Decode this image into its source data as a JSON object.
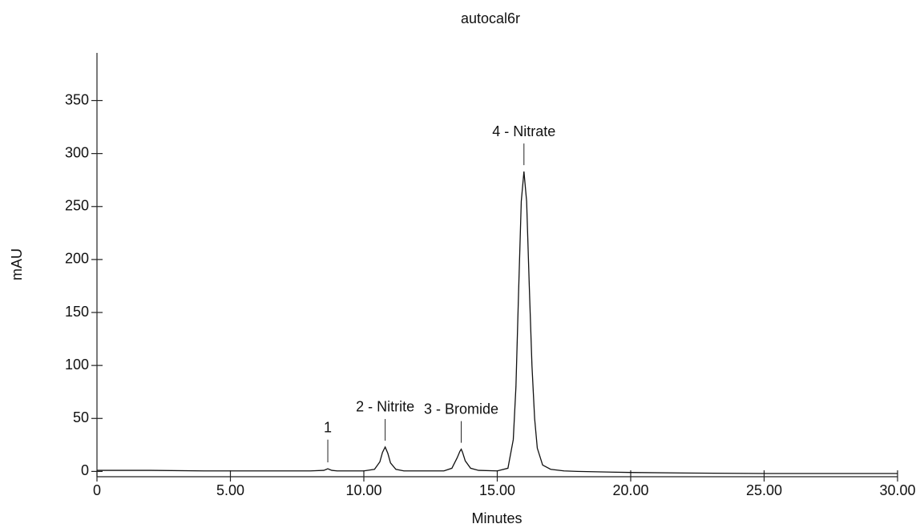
{
  "chart_data": {
    "type": "line",
    "title": "autocal6r",
    "x_label": "Minutes",
    "y_label": "mAU",
    "xlim": [
      0,
      30
    ],
    "ylim": [
      -5,
      395
    ],
    "xticks": [
      0,
      {
        "value": 5,
        "label": "5.00"
      },
      {
        "value": 10,
        "label": "10.00"
      },
      {
        "value": 15,
        "label": "15.00"
      },
      {
        "value": 20,
        "label": "20.00"
      },
      {
        "value": 25,
        "label": "25.00"
      },
      {
        "value": 30,
        "label": "30.00"
      }
    ],
    "yticks": [
      0,
      50,
      100,
      150,
      200,
      250,
      300,
      350
    ],
    "x": [
      0,
      2,
      4,
      6,
      8,
      8.5,
      8.6,
      8.65,
      8.7,
      8.8,
      9,
      10,
      10.4,
      10.6,
      10.7,
      10.8,
      10.9,
      11.0,
      11.2,
      11.5,
      12,
      13,
      13.3,
      13.5,
      13.6,
      13.65,
      13.7,
      13.8,
      14.0,
      14.3,
      15,
      15.4,
      15.6,
      15.7,
      15.8,
      15.9,
      16.0,
      16.1,
      16.2,
      16.3,
      16.4,
      16.5,
      16.7,
      17.0,
      17.5,
      18,
      20,
      22,
      25,
      28,
      30
    ],
    "series": [
      {
        "color": "#111111",
        "values": [
          1,
          1,
          0.5,
          0.5,
          0.5,
          1,
          2,
          2.5,
          2,
          1,
          0.5,
          0.5,
          2,
          9,
          18,
          23,
          17,
          8,
          2,
          0.5,
          0.5,
          0.5,
          3,
          13,
          19,
          21,
          18,
          10,
          3,
          1,
          0.5,
          3,
          30,
          80,
          170,
          255,
          283,
          255,
          175,
          100,
          50,
          22,
          6,
          2,
          0.5,
          0,
          -1,
          -1.5,
          -2,
          -2,
          -2
        ]
      }
    ],
    "annotations": [
      {
        "text": "1",
        "x": 8.65
      },
      {
        "text": "2 - Nitrite",
        "x": 10.8
      },
      {
        "text": "3 - Bromide",
        "x": 13.65
      },
      {
        "text": "4 - Nitrate",
        "x": 16.0
      }
    ]
  }
}
